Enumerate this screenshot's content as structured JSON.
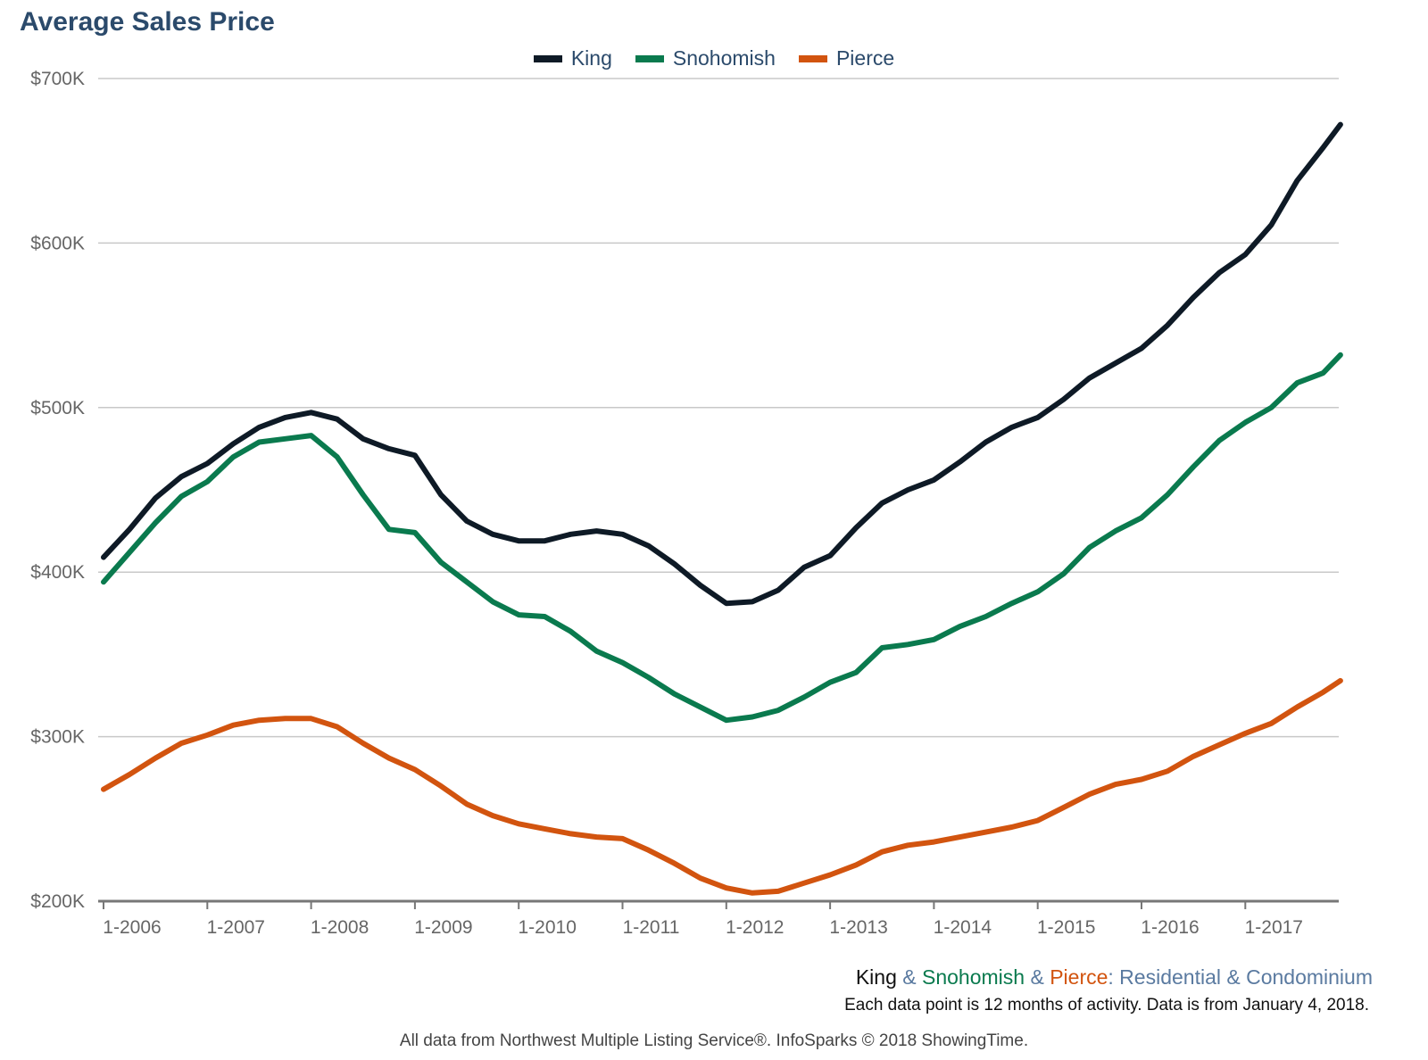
{
  "title": "Average Sales Price",
  "subtitle": {
    "parts": [
      {
        "text": "King",
        "color": "#111111"
      },
      {
        "text": " & ",
        "color": "#5a7aa0"
      },
      {
        "text": "Snohomish",
        "color": "#0a7a4e"
      },
      {
        "text": " & ",
        "color": "#5a7aa0"
      },
      {
        "text": "Pierce",
        "color": "#d2540f"
      },
      {
        "text": ": Residential & Condominium",
        "color": "#5a7aa0"
      }
    ]
  },
  "note": "Each data point is 12 months of activity. Data is from January 4, 2018.",
  "footer": "All data from Northwest Multiple Listing Service®. InfoSparks © 2018 ShowingTime.",
  "chart_data": {
    "type": "line",
    "title": "Average Sales Price",
    "xlabel": "",
    "ylabel": "",
    "x_ticks": [
      "1-2006",
      "1-2007",
      "1-2008",
      "1-2009",
      "1-2010",
      "1-2011",
      "1-2012",
      "1-2013",
      "1-2014",
      "1-2015",
      "1-2016",
      "1-2017"
    ],
    "y_ticks": [
      "$200K",
      "$300K",
      "$400K",
      "$500K",
      "$600K",
      "$700K"
    ],
    "ylim": [
      200000,
      700000
    ],
    "xlim": [
      "2006-01",
      "2017-12"
    ],
    "grid": true,
    "legend_position": "top-center",
    "series": [
      {
        "name": "King",
        "color": "#0e1a26",
        "points": [
          [
            "2006-01",
            409000
          ],
          [
            "2006-04",
            426000
          ],
          [
            "2006-07",
            445000
          ],
          [
            "2006-10",
            458000
          ],
          [
            "2007-01",
            466000
          ],
          [
            "2007-04",
            478000
          ],
          [
            "2007-07",
            488000
          ],
          [
            "2007-10",
            494000
          ],
          [
            "2008-01",
            497000
          ],
          [
            "2008-04",
            493000
          ],
          [
            "2008-07",
            481000
          ],
          [
            "2008-10",
            475000
          ],
          [
            "2009-01",
            471000
          ],
          [
            "2009-04",
            447000
          ],
          [
            "2009-07",
            431000
          ],
          [
            "2009-10",
            423000
          ],
          [
            "2010-01",
            419000
          ],
          [
            "2010-04",
            419000
          ],
          [
            "2010-07",
            423000
          ],
          [
            "2010-10",
            425000
          ],
          [
            "2011-01",
            423000
          ],
          [
            "2011-04",
            416000
          ],
          [
            "2011-07",
            405000
          ],
          [
            "2011-10",
            392000
          ],
          [
            "2012-01",
            381000
          ],
          [
            "2012-04",
            382000
          ],
          [
            "2012-07",
            389000
          ],
          [
            "2012-10",
            403000
          ],
          [
            "2013-01",
            410000
          ],
          [
            "2013-04",
            427000
          ],
          [
            "2013-07",
            442000
          ],
          [
            "2013-10",
            450000
          ],
          [
            "2014-01",
            456000
          ],
          [
            "2014-04",
            467000
          ],
          [
            "2014-07",
            479000
          ],
          [
            "2014-10",
            488000
          ],
          [
            "2015-01",
            494000
          ],
          [
            "2015-04",
            505000
          ],
          [
            "2015-07",
            518000
          ],
          [
            "2015-10",
            527000
          ],
          [
            "2016-01",
            536000
          ],
          [
            "2016-04",
            550000
          ],
          [
            "2016-07",
            567000
          ],
          [
            "2016-10",
            582000
          ],
          [
            "2017-01",
            593000
          ],
          [
            "2017-04",
            611000
          ],
          [
            "2017-07",
            638000
          ],
          [
            "2017-10",
            658000
          ],
          [
            "2017-12",
            672000
          ]
        ]
      },
      {
        "name": "Snohomish",
        "color": "#0a7a4e",
        "points": [
          [
            "2006-01",
            394000
          ],
          [
            "2006-04",
            412000
          ],
          [
            "2006-07",
            430000
          ],
          [
            "2006-10",
            446000
          ],
          [
            "2007-01",
            455000
          ],
          [
            "2007-04",
            470000
          ],
          [
            "2007-07",
            479000
          ],
          [
            "2007-10",
            481000
          ],
          [
            "2008-01",
            483000
          ],
          [
            "2008-04",
            470000
          ],
          [
            "2008-07",
            447000
          ],
          [
            "2008-10",
            426000
          ],
          [
            "2009-01",
            424000
          ],
          [
            "2009-04",
            406000
          ],
          [
            "2009-07",
            394000
          ],
          [
            "2009-10",
            382000
          ],
          [
            "2010-01",
            374000
          ],
          [
            "2010-04",
            373000
          ],
          [
            "2010-07",
            364000
          ],
          [
            "2010-10",
            352000
          ],
          [
            "2011-01",
            345000
          ],
          [
            "2011-04",
            336000
          ],
          [
            "2011-07",
            326000
          ],
          [
            "2011-10",
            318000
          ],
          [
            "2012-01",
            310000
          ],
          [
            "2012-04",
            312000
          ],
          [
            "2012-07",
            316000
          ],
          [
            "2012-10",
            324000
          ],
          [
            "2013-01",
            333000
          ],
          [
            "2013-04",
            339000
          ],
          [
            "2013-07",
            354000
          ],
          [
            "2013-10",
            356000
          ],
          [
            "2014-01",
            359000
          ],
          [
            "2014-04",
            367000
          ],
          [
            "2014-07",
            373000
          ],
          [
            "2014-10",
            381000
          ],
          [
            "2015-01",
            388000
          ],
          [
            "2015-04",
            399000
          ],
          [
            "2015-07",
            415000
          ],
          [
            "2015-10",
            425000
          ],
          [
            "2016-01",
            433000
          ],
          [
            "2016-04",
            447000
          ],
          [
            "2016-07",
            464000
          ],
          [
            "2016-10",
            480000
          ],
          [
            "2017-01",
            491000
          ],
          [
            "2017-04",
            500000
          ],
          [
            "2017-07",
            515000
          ],
          [
            "2017-10",
            521000
          ],
          [
            "2017-12",
            532000
          ]
        ]
      },
      {
        "name": "Pierce",
        "color": "#d2540f",
        "points": [
          [
            "2006-01",
            268000
          ],
          [
            "2006-04",
            277000
          ],
          [
            "2006-07",
            287000
          ],
          [
            "2006-10",
            296000
          ],
          [
            "2007-01",
            301000
          ],
          [
            "2007-04",
            307000
          ],
          [
            "2007-07",
            310000
          ],
          [
            "2007-10",
            311000
          ],
          [
            "2008-01",
            311000
          ],
          [
            "2008-04",
            306000
          ],
          [
            "2008-07",
            296000
          ],
          [
            "2008-10",
            287000
          ],
          [
            "2009-01",
            280000
          ],
          [
            "2009-04",
            270000
          ],
          [
            "2009-07",
            259000
          ],
          [
            "2009-10",
            252000
          ],
          [
            "2010-01",
            247000
          ],
          [
            "2010-04",
            244000
          ],
          [
            "2010-07",
            241000
          ],
          [
            "2010-10",
            239000
          ],
          [
            "2011-01",
            238000
          ],
          [
            "2011-04",
            231000
          ],
          [
            "2011-07",
            223000
          ],
          [
            "2011-10",
            214000
          ],
          [
            "2012-01",
            208000
          ],
          [
            "2012-04",
            205000
          ],
          [
            "2012-07",
            206000
          ],
          [
            "2012-10",
            211000
          ],
          [
            "2013-01",
            216000
          ],
          [
            "2013-04",
            222000
          ],
          [
            "2013-07",
            230000
          ],
          [
            "2013-10",
            234000
          ],
          [
            "2014-01",
            236000
          ],
          [
            "2014-04",
            239000
          ],
          [
            "2014-07",
            242000
          ],
          [
            "2014-10",
            245000
          ],
          [
            "2015-01",
            249000
          ],
          [
            "2015-04",
            257000
          ],
          [
            "2015-07",
            265000
          ],
          [
            "2015-10",
            271000
          ],
          [
            "2016-01",
            274000
          ],
          [
            "2016-04",
            279000
          ],
          [
            "2016-07",
            288000
          ],
          [
            "2016-10",
            295000
          ],
          [
            "2017-01",
            302000
          ],
          [
            "2017-04",
            308000
          ],
          [
            "2017-07",
            318000
          ],
          [
            "2017-10",
            327000
          ],
          [
            "2017-12",
            334000
          ]
        ]
      }
    ]
  }
}
